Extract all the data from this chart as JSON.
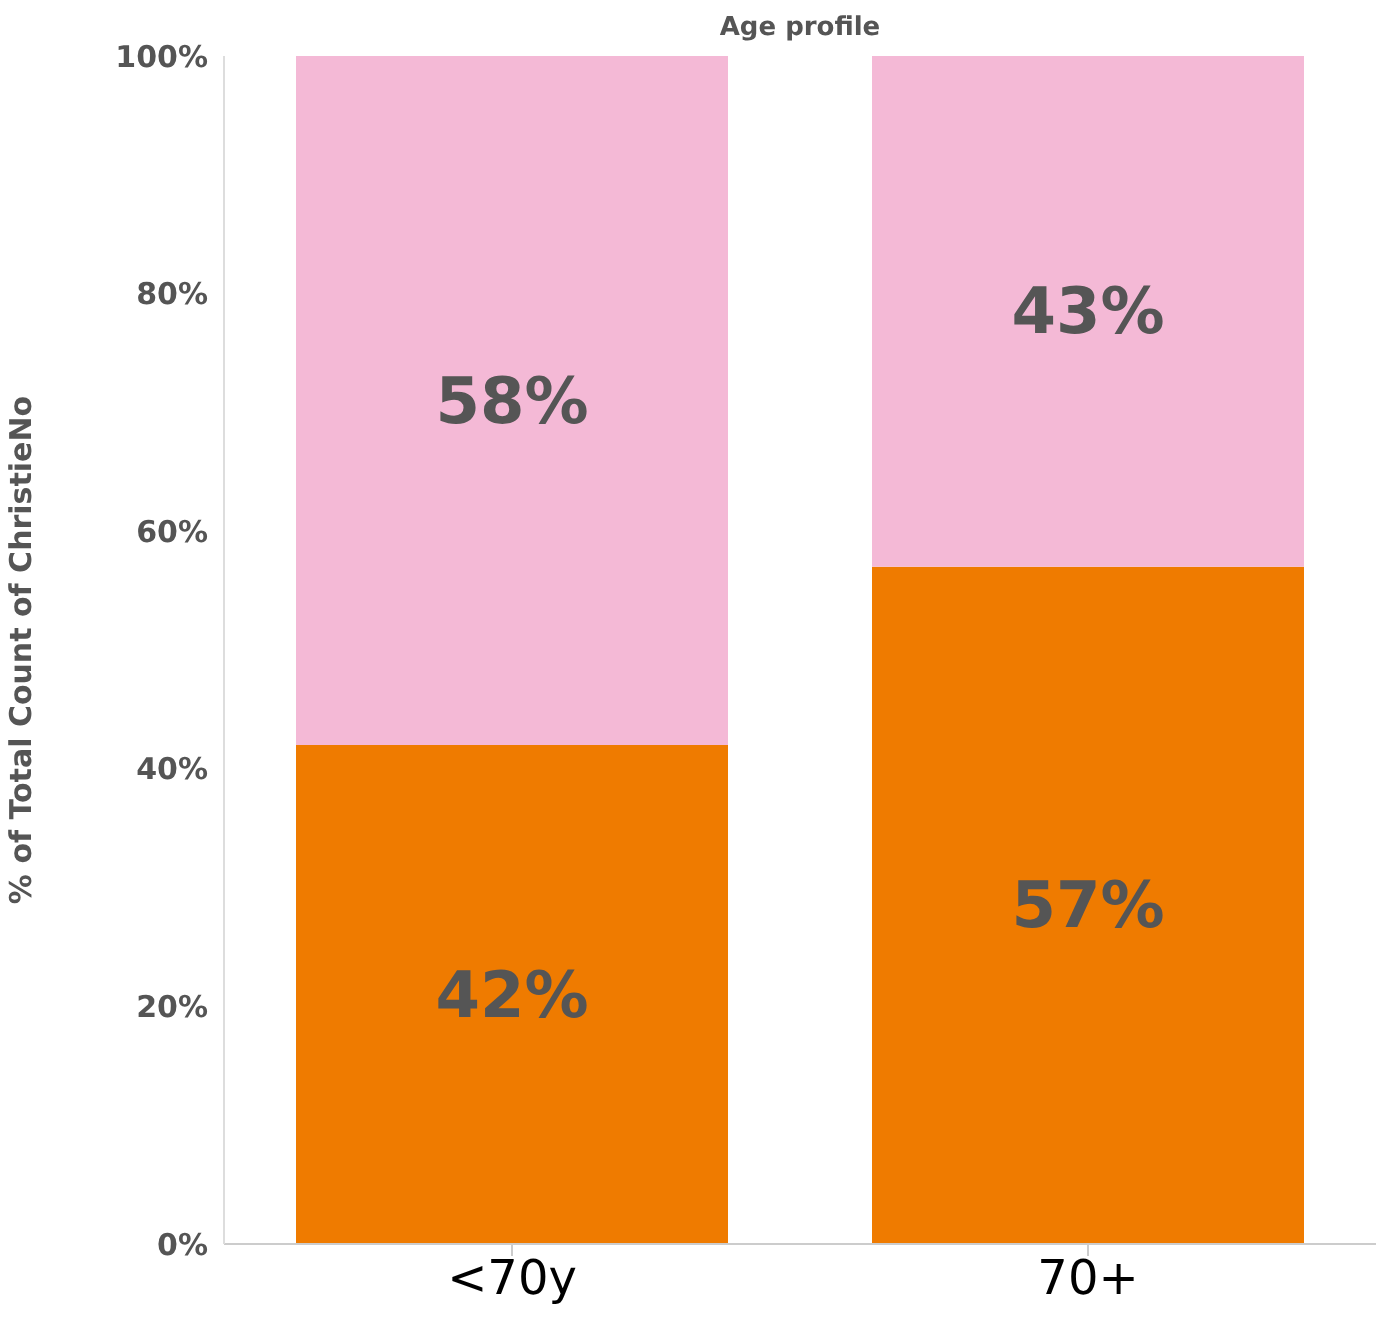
{
  "chart_data": {
    "type": "bar",
    "title": "Age profile",
    "ylabel": "% of Total Count of ChristieNo",
    "categories": [
      "<70y",
      "70+"
    ],
    "stacked": true,
    "series": [
      {
        "color": "#ef7b00",
        "values": [
          42,
          57
        ],
        "value_labels": [
          "42%",
          "57%"
        ]
      },
      {
        "color": "#f4b9d6",
        "values": [
          58,
          43
        ],
        "value_labels": [
          "58%",
          "43%"
        ]
      }
    ],
    "ylim": [
      0,
      100
    ],
    "yticks": [
      {
        "value": 0,
        "label": "0%"
      },
      {
        "value": 20,
        "label": "20%"
      },
      {
        "value": 40,
        "label": "40%"
      },
      {
        "value": 60,
        "label": "60%"
      },
      {
        "value": 80,
        "label": "80%"
      },
      {
        "value": 100,
        "label": "100%"
      }
    ],
    "grid": false,
    "legend": false
  }
}
